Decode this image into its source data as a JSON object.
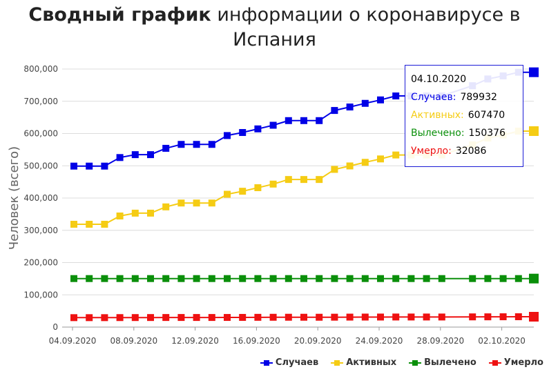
{
  "title_bold": "Сводный график",
  "title_rest": " информации о коронавирусе в",
  "title_line2": "Испания",
  "chart_data": {
    "type": "line",
    "ylabel": "Человек (всего)",
    "ylim": [
      0,
      800000
    ],
    "y_ticks": [
      "0",
      "100,000",
      "200,000",
      "300,000",
      "400,000",
      "500,000",
      "600,000",
      "700,000",
      "800,000"
    ],
    "x_tick_labels": [
      "04.09.2020",
      "08.09.2020",
      "12.09.2020",
      "16.09.2020",
      "20.09.2020",
      "24.09.2020",
      "28.09.2020",
      "02.10.2020"
    ],
    "x_dates": [
      "04.09",
      "05.09",
      "06.09",
      "07.09",
      "08.09",
      "09.09",
      "10.09",
      "11.09",
      "12.09",
      "13.09",
      "14.09",
      "15.09",
      "16.09",
      "17.09",
      "18.09",
      "19.09",
      "20.09",
      "21.09",
      "22.09",
      "23.09",
      "24.09",
      "25.09",
      "26.09",
      "27.09",
      "28.09",
      "29.09",
      "30.09",
      "01.10",
      "02.10",
      "03.10",
      "04.10"
    ],
    "series": [
      {
        "name": "Случаев",
        "color": "#0000e6",
        "values": [
          498989,
          498989,
          498989,
          525549,
          534513,
          534513,
          554143,
          566326,
          566326,
          566326,
          593730,
          603167,
          614360,
          625651,
          640040,
          640040,
          640040,
          671468,
          682267,
          693556,
          704209,
          716481,
          716481,
          716481,
          716481,
          null,
          748266,
          769188,
          778607,
          789932,
          789932
        ]
      },
      {
        "name": "Активных",
        "color": "#f5cc14",
        "values": [
          318722,
          318722,
          318722,
          344370,
          353160,
          353160,
          372576,
          384562,
          384562,
          384562,
          411757,
          421036,
          432075,
          443246,
          457474,
          457474,
          457474,
          488809,
          499510,
          510704,
          521251,
          533431,
          533431,
          533431,
          533431,
          null,
          565098,
          585985,
          595352,
          607470,
          607470
        ]
      },
      {
        "name": "Вылечено",
        "color": "#0a8f0a",
        "values": [
          150376,
          150376,
          150376,
          150376,
          150376,
          150376,
          150376,
          150376,
          150376,
          150376,
          150376,
          150376,
          150376,
          150376,
          150376,
          150376,
          150376,
          150376,
          150376,
          150376,
          150376,
          150376,
          150376,
          150376,
          150376,
          null,
          150376,
          150376,
          150376,
          150376,
          150376
        ]
      },
      {
        "name": "Умерло",
        "color": "#ee1111",
        "values": [
          29234,
          29234,
          29234,
          29418,
          29516,
          29594,
          29699,
          29747,
          29747,
          29747,
          29848,
          30004,
          30243,
          30405,
          30495,
          30495,
          30495,
          30663,
          30904,
          31034,
          31118,
          31232,
          31232,
          31232,
          31232,
          null,
          31614,
          31791,
          31973,
          32086,
          32086
        ]
      }
    ],
    "legend_position": "bottom-right",
    "grid": true
  },
  "tooltip": {
    "date": "04.10.2020",
    "rows": [
      {
        "label": "Случаев:",
        "value": "789932",
        "color": "#0000e6"
      },
      {
        "label": "Активных:",
        "value": "607470",
        "color": "#f5cc14"
      },
      {
        "label": "Вылечено:",
        "value": "150376",
        "color": "#0a8f0a"
      },
      {
        "label": "Умерло:",
        "value": "32086",
        "color": "#ee1111"
      }
    ]
  }
}
